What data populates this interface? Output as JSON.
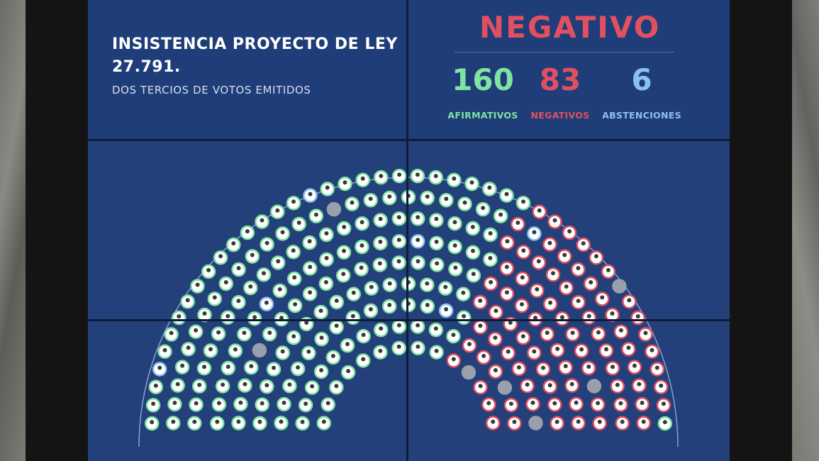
{
  "motion": {
    "title_line1": "INSISTENCIA PROYECTO DE LEY",
    "title_line2": "27.791.",
    "subtitle": "DOS TERCIOS DE VOTOS EMITIDOS"
  },
  "result": {
    "label": "NEGATIVO",
    "affirmative": {
      "count": "160",
      "label": "AFIRMATIVOS"
    },
    "negative": {
      "count": "83",
      "label": "NEGATIVOS"
    },
    "abstention": {
      "count": "6",
      "label": "ABSTENCIONES"
    }
  },
  "colors": {
    "affirmative": "#7fe3a2",
    "negative": "#e2505f",
    "abstention": "#8cc0f2",
    "absent": "#9aa0ab",
    "screen": "#23407a",
    "arc": "#8a9fd0"
  },
  "seat_counts": {
    "affirmative": 160,
    "negative": 83,
    "abstention": 6,
    "absent": 8
  }
}
